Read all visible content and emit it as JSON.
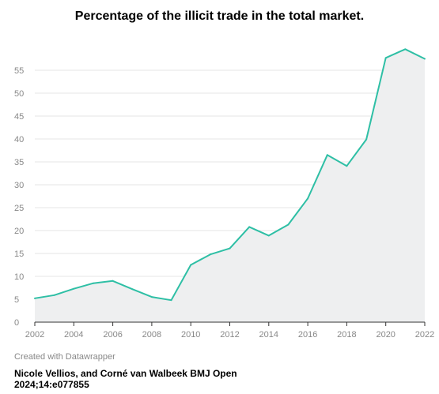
{
  "chart_data": {
    "type": "area",
    "title": "Percentage of the illicit trade in the total market.",
    "x": [
      2002,
      2003,
      2004,
      2005,
      2006,
      2007,
      2008,
      2009,
      2010,
      2011,
      2012,
      2013,
      2014,
      2015,
      2016,
      2017,
      2018,
      2019,
      2020,
      2021,
      2022
    ],
    "values": [
      5.2,
      5.9,
      7.3,
      8.5,
      9.0,
      7.2,
      5.5,
      4.8,
      12.5,
      14.8,
      16.1,
      20.8,
      18.9,
      21.3,
      27.0,
      36.5,
      34.1,
      39.9,
      57.7,
      59.6,
      57.5
    ],
    "xticks": [
      "2002",
      "2004",
      "2006",
      "2008",
      "2010",
      "2012",
      "2014",
      "2016",
      "2018",
      "2020",
      "2022"
    ],
    "yticks": [
      "0",
      "5",
      "10",
      "15",
      "20",
      "25",
      "30",
      "35",
      "40",
      "45",
      "50",
      "55"
    ],
    "xlim": [
      2002,
      2022
    ],
    "ylim": [
      0,
      60
    ],
    "grid": true,
    "line_color": "#2ebfa5",
    "fill_color": "#eeeff0",
    "xlabel": "",
    "ylabel": ""
  },
  "footer": {
    "credit": "Created with Datawrapper",
    "citation": "Nicole Vellios, and Corné van Walbeek BMJ Open 2024;14:e077855"
  }
}
